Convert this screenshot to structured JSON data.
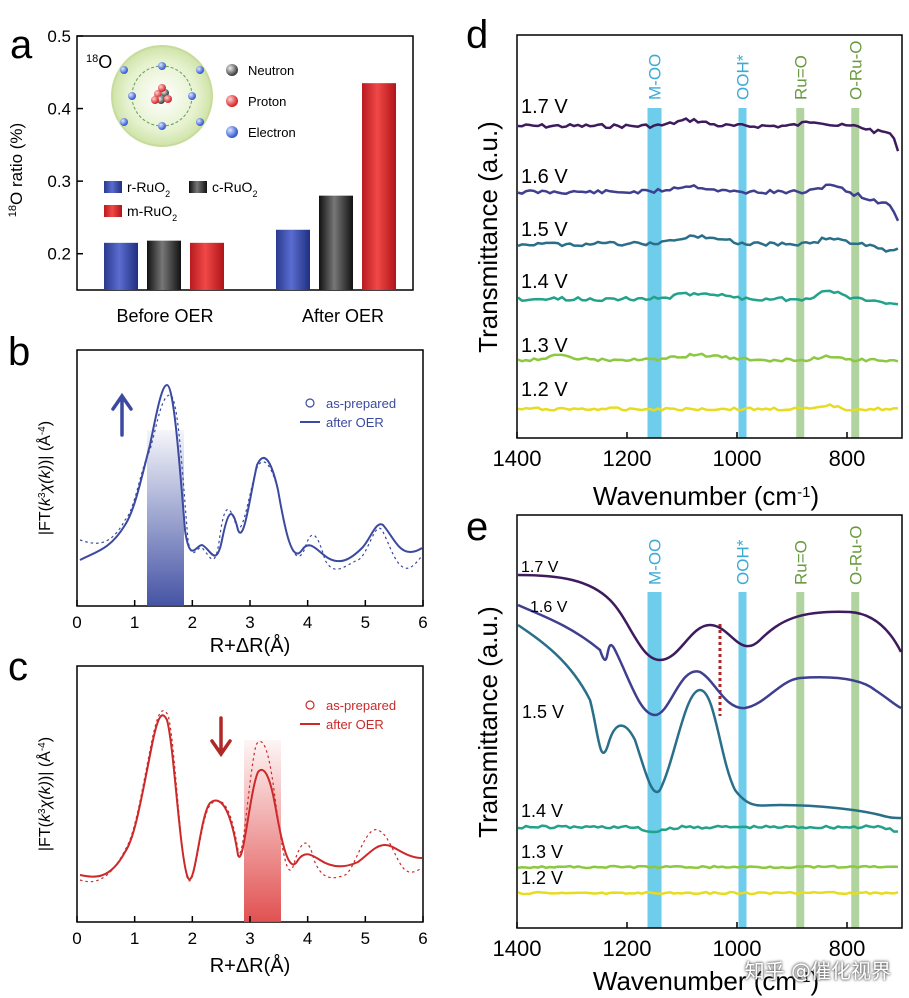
{
  "watermark": "知乎 @催化视界",
  "colors": {
    "r": "#2a3f9c",
    "c": "#222222",
    "m": "#d0242a",
    "blue": "#3b4aa0",
    "red": "#cc2a2a",
    "band_cyan": "#48c0e6",
    "band_green": "#9cc888",
    "v17": "#3d1b5c",
    "v16": "#3f3f8f",
    "v15": "#2a6f8a",
    "v14": "#22a28a",
    "v13": "#8cc840",
    "v12": "#e6dc20"
  },
  "chart_data": [
    {
      "panel": "a",
      "type": "bar",
      "ylabel": "18O ratio (%)",
      "ylim": [
        0.15,
        0.5
      ],
      "yticks": [
        "0.2",
        "0.3",
        "0.4",
        "0.5"
      ],
      "categories": [
        "Before OER",
        "After OER"
      ],
      "series": [
        {
          "name": "r-RuO2",
          "values": [
            0.215,
            0.233
          ]
        },
        {
          "name": "c-RuO2",
          "values": [
            0.218,
            0.28
          ]
        },
        {
          "name": "m-RuO2",
          "values": [
            0.215,
            0.435
          ]
        }
      ],
      "inset": {
        "title": "18O",
        "legend": [
          "Neutron",
          "Proton",
          "Electron"
        ]
      }
    },
    {
      "panel": "b",
      "type": "line",
      "xlabel": "R+ΔR(Å)",
      "ylabel": "|FT(k3χ(k))| (Å-4)",
      "xlim": [
        0,
        6
      ],
      "xticks": [
        "0",
        "1",
        "2",
        "3",
        "4",
        "5",
        "6"
      ],
      "legend": [
        "as-prepared",
        "after OER"
      ],
      "highlight_range": [
        1.2,
        1.8
      ],
      "arrow": "up"
    },
    {
      "panel": "c",
      "type": "line",
      "xlabel": "R+ΔR(Å)",
      "ylabel": "|FT(k3χ(k))| (Å-4)",
      "xlim": [
        0,
        6
      ],
      "xticks": [
        "0",
        "1",
        "2",
        "3",
        "4",
        "5",
        "6"
      ],
      "legend": [
        "as-prepared",
        "after OER"
      ],
      "highlight_range": [
        2.9,
        3.5
      ],
      "arrow": "down"
    },
    {
      "panel": "d",
      "type": "line",
      "xlabel": "Wavenumber (cm-1)",
      "ylabel": "Transmittance (a.u.)",
      "xlim": [
        1400,
        700
      ],
      "xticks": [
        "1400",
        "1200",
        "1000",
        "800"
      ],
      "bands": [
        {
          "label": "M-OO",
          "x": 1150
        },
        {
          "label": "OOH*",
          "x": 990
        },
        {
          "label": "Ru=O",
          "x": 885
        },
        {
          "label": "O-Ru-O",
          "x": 785
        }
      ],
      "series": [
        "1.7 V",
        "1.6 V",
        "1.5 V",
        "1.4 V",
        "1.3 V",
        "1.2 V"
      ]
    },
    {
      "panel": "e",
      "type": "line",
      "xlabel": "Wavenumber (cm-1)",
      "ylabel": "Transmittance (a.u.)",
      "xlim": [
        1400,
        700
      ],
      "xticks": [
        "1400",
        "1200",
        "1000",
        "800"
      ],
      "bands": [
        {
          "label": "M-OO",
          "x": 1150
        },
        {
          "label": "OOH*",
          "x": 990
        },
        {
          "label": "Ru=O",
          "x": 885
        },
        {
          "label": "O-Ru-O",
          "x": 785
        }
      ],
      "series": [
        "1.7 V",
        "1.6 V",
        "1.5 V",
        "1.4 V",
        "1.3 V",
        "1.2 V"
      ]
    }
  ]
}
